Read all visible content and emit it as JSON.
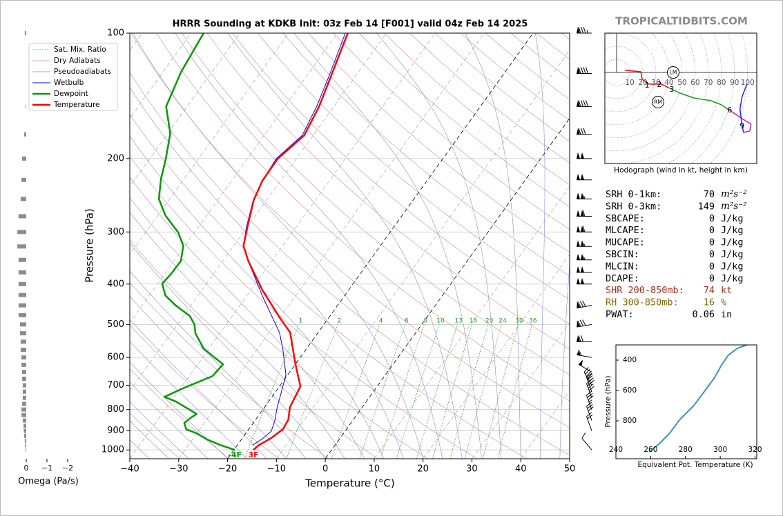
{
  "brand": "TROPICALTIDBITS.COM",
  "chart_data": [
    {
      "type": "skewt",
      "title": "HRRR Sounding at KDKB Init: 03z Feb 14 [F001] valid 04z Feb 14 2025",
      "xlabel": "Temperature (°C)",
      "ylabel": "Pressure (hPa)",
      "xlim": [
        -40,
        50
      ],
      "ylim": [
        1050,
        100
      ],
      "log_scale": true,
      "xticks": [
        {
          "value": -40,
          "label": "−40"
        },
        {
          "value": -30,
          "label": "−30"
        },
        {
          "value": -20,
          "label": "−20"
        },
        {
          "value": -10,
          "label": "−10"
        },
        0,
        10,
        20,
        30,
        40,
        50
      ],
      "yticks": [
        100,
        200,
        300,
        400,
        500,
        600,
        700,
        800,
        900,
        1000
      ],
      "grid": true,
      "highlight_isotherms": [
        -20,
        0
      ],
      "reference_lines": [
        {
          "name": "Sat. Mix. Ratio",
          "color": "#2e9a2e",
          "linestyle": "dotted",
          "values": [
            1,
            2,
            4,
            6,
            8,
            10,
            13,
            16,
            20,
            24,
            30,
            36
          ]
        },
        {
          "name": "Dry Adiabats",
          "color": "#d98a8a",
          "linestyle": "solid"
        },
        {
          "name": "Pseudoadiabats",
          "color": "#8a8ad9",
          "linestyle": "solid"
        }
      ],
      "series": [
        {
          "name": "Wetbulb",
          "color": "#0000ff",
          "linewidth": 1,
          "pressure": [
            974,
            941,
            902,
            852,
            790,
            726,
            660,
            571,
            523,
            429,
            354,
            324,
            293,
            252,
            226,
            200,
            176,
            150,
            127,
            100
          ],
          "values": [
            -16.9,
            -15.8,
            -15.1,
            -15.9,
            -17.4,
            -18.8,
            -20.4,
            -24.9,
            -27.9,
            -36.6,
            -44.6,
            -48.0,
            -50.1,
            -52.7,
            -53.7,
            -54.1,
            -52.2,
            -53.5,
            -55.4,
            -58.4
          ]
        },
        {
          "name": "Dewpoint",
          "color": "#009900",
          "linewidth": 2.5,
          "surface_label": "-4F",
          "pressure": [
            1000,
            974,
            944,
            913,
            892,
            862,
            836,
            820,
            766,
            746,
            712,
            665,
            623,
            598,
            571,
            525,
            500,
            477,
            451,
            426,
            399,
            378,
            352,
            324,
            301,
            274,
            250,
            224,
            200,
            174,
            150,
            124,
            100
          ],
          "values": [
            -19.8,
            -23.4,
            -27.0,
            -30.0,
            -32.8,
            -34.1,
            -33.5,
            -32.9,
            -38.9,
            -42.0,
            -39.5,
            -35.2,
            -34.8,
            -37.8,
            -41.1,
            -45.0,
            -46.5,
            -48.7,
            -53.0,
            -56.7,
            -59.1,
            -58.7,
            -58.6,
            -60.3,
            -63.3,
            -68.4,
            -72.2,
            -74.7,
            -76.7,
            -79.5,
            -84.3,
            -86.3,
            -87.4
          ]
        },
        {
          "name": "Temperature",
          "color": "#ff0000",
          "linewidth": 2.5,
          "surface_label": "3F",
          "pressure": [
            1000,
            974,
            937,
            892,
            846,
            790,
            704,
            621,
            523,
            481,
            413,
            352,
            324,
            293,
            252,
            226,
            200,
            176,
            150,
            127,
            100
          ],
          "values": [
            -16.0,
            -15.6,
            -14.1,
            -13.0,
            -13.3,
            -14.8,
            -15.7,
            -20.1,
            -25.7,
            -30.1,
            -37.7,
            -44.8,
            -48.0,
            -49.9,
            -52.6,
            -53.7,
            -53.8,
            -51.8,
            -53.0,
            -55.0,
            -57.9
          ]
        }
      ],
      "winds": {
        "pressure": [
          100,
          125,
          150,
          175,
          200,
          225,
          250,
          275,
          300,
          325,
          350,
          375,
          400,
          450,
          500,
          550,
          600,
          650,
          700,
          725,
          750,
          800,
          850,
          900,
          1000
        ],
        "speed": [
          85,
          90,
          90,
          80,
          100,
          100,
          105,
          110,
          110,
          105,
          105,
          100,
          100,
          80,
          80,
          70,
          55,
          50,
          40,
          40,
          40,
          35,
          30,
          20,
          10
        ],
        "direction": [
          270,
          270,
          270,
          270,
          270,
          270,
          270,
          270,
          270,
          270,
          270,
          270,
          270,
          260,
          260,
          270,
          280,
          300,
          330,
          340,
          340,
          340,
          340,
          340,
          320
        ]
      }
    },
    {
      "type": "omega",
      "xlabel": "Omega (Pa/s)",
      "color": "#8c8c8c",
      "xlim": [
        0.5,
        -2.3
      ],
      "ylim": [
        1050,
        100
      ],
      "xticks": [
        0,
        {
          "value": -1,
          "label": "−1"
        },
        {
          "value": -2,
          "label": "−2"
        }
      ],
      "pressure": [
        1000,
        975,
        950,
        925,
        900,
        875,
        850,
        825,
        800,
        775,
        750,
        725,
        700,
        675,
        650,
        625,
        600,
        575,
        550,
        525,
        500,
        475,
        450,
        425,
        400,
        375,
        350,
        325,
        300,
        275,
        250,
        225,
        200,
        175,
        150,
        125,
        100
      ],
      "values": [
        0.03,
        0.05,
        0.07,
        0.1,
        0.12,
        0.13,
        0.17,
        0.23,
        0.23,
        0.2,
        0.17,
        0.17,
        0.17,
        0.2,
        0.2,
        0.23,
        0.23,
        0.27,
        0.27,
        0.3,
        0.3,
        0.37,
        0.37,
        0.37,
        0.37,
        0.37,
        0.37,
        0.43,
        0.43,
        0.37,
        0.27,
        0.23,
        0.2,
        0.1,
        0.03,
        0,
        0.07
      ]
    },
    {
      "type": "hodograph",
      "caption": "Hodograph (wind in kt, height in km)",
      "xlim": [
        -9,
        107
      ],
      "ylim": [
        -69.5,
        30
      ],
      "rings": [
        10,
        20,
        30,
        40,
        50,
        60,
        70,
        80,
        90,
        100
      ],
      "segments": [
        {
          "color": "#ff0000",
          "u": [
            6.3,
            18.4,
            19.5,
            24.7,
            34.2,
            40.5
          ],
          "v": [
            1.6,
            0.5,
            -5.3,
            -8.9,
            -8.9,
            -12.1
          ]
        },
        {
          "color": "#1a9a1a",
          "u": [
            40.5,
            48.4,
            58.9,
            72.1,
            80,
            86.3
          ],
          "v": [
            -12.1,
            -15.8,
            -19.5,
            -21.6,
            -24.7,
            -28.9
          ]
        },
        {
          "color": "#c020c0",
          "u": [
            86.3,
            95.8,
            102.6,
            101.6,
            96.8
          ],
          "v": [
            -28.9,
            -35.3,
            -39.5,
            -44.7,
            -45.8
          ]
        },
        {
          "color": "#2020ff",
          "u": [
            96.8,
            95.3,
            94.2,
            95.8,
            99.5
          ],
          "v": [
            -45.8,
            -36.8,
            -27.9,
            -18.4,
            -8.9
          ]
        }
      ],
      "height_markers": {
        "height": [
          1,
          2,
          3,
          6,
          9
        ],
        "u": [
          23.2,
          32.6,
          42.1,
          86.3,
          95.8
        ],
        "v": [
          -10,
          -9.5,
          -13.2,
          -28.9,
          -41.1
        ]
      },
      "storm_motion": [
        {
          "label": "LM",
          "u": 43.2,
          "v": 0
        },
        {
          "label": "RM",
          "u": 31.6,
          "v": -22.6
        }
      ]
    },
    {
      "type": "profile",
      "xlabel": "Equivalent Pot. Temperature (K)",
      "ylabel": "Pressure (hPa)",
      "color": "#3a95b8",
      "xlim": [
        240,
        321
      ],
      "ylim": [
        1050,
        300
      ],
      "xticks": [
        240,
        260,
        280,
        300,
        320
      ],
      "yticks": [
        400,
        600,
        800
      ],
      "pressure": [
        1005,
        950,
        882,
        791,
        700,
        609,
        518,
        436,
        368,
        323,
        300
      ],
      "values": [
        259.0,
        265.0,
        270.9,
        276.8,
        284.8,
        290.7,
        296.6,
        300.6,
        304.6,
        309.7,
        315.2
      ]
    }
  ],
  "indices": {
    "rows": [
      {
        "label": "SRH 0-1km:",
        "value": 70,
        "unit": "m²s⁻²"
      },
      {
        "label": "SRH 0-3km:",
        "value": 149,
        "unit": "m²s⁻²"
      },
      {
        "label": "SBCAPE:",
        "value": 0,
        "unit": "J/kg"
      },
      {
        "label": "MLCAPE:",
        "value": 0,
        "unit": "J/kg"
      },
      {
        "label": "MUCAPE:",
        "value": 0,
        "unit": "J/kg"
      },
      {
        "label": "SBCIN:",
        "value": 0,
        "unit": "J/kg"
      },
      {
        "label": "MLCIN:",
        "value": 0,
        "unit": "J/kg"
      },
      {
        "label": "DCAPE:",
        "value": 0,
        "unit": "J/kg"
      },
      {
        "label": "SHR 200-850mb:",
        "value": 74,
        "unit": "kt",
        "color": "#a5301f"
      },
      {
        "label": "RH 300-850mb:",
        "value": 16,
        "unit": "%",
        "color": "#8b6508"
      },
      {
        "label": "PWAT:",
        "value": 0.06,
        "unit": "in"
      }
    ]
  }
}
